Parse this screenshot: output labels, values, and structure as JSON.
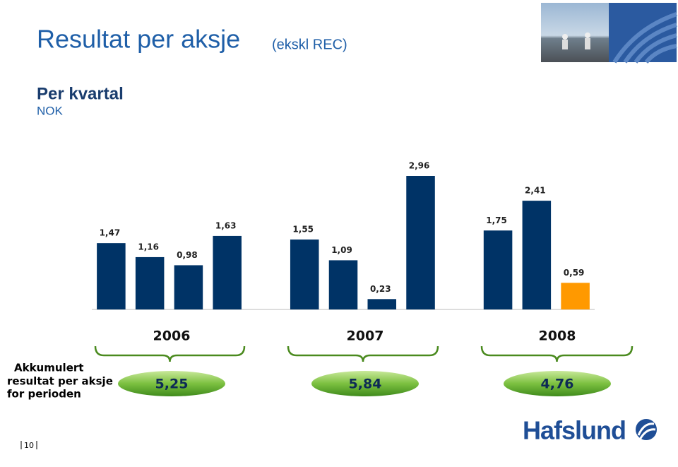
{
  "title": "Resultat per aksje",
  "title_note": "(ekskl REC)",
  "chart_data": {
    "type": "bar",
    "subtitle": "Per kvartal",
    "unit": "NOK",
    "categories": [
      null,
      null,
      null,
      null,
      null,
      null,
      null,
      null,
      null,
      null,
      null,
      null,
      null
    ],
    "values": [
      1.47,
      1.16,
      0.98,
      1.63,
      null,
      1.55,
      1.09,
      0.23,
      2.96,
      null,
      1.75,
      2.41,
      0.59
    ],
    "value_labels": [
      "1,47",
      "1,16",
      "0,98",
      "1,63",
      null,
      "1,55",
      "1,09",
      "0,23",
      "2,96",
      null,
      "1,75",
      "2,41",
      "0,59"
    ],
    "colors": [
      "#003366",
      "#003366",
      "#003366",
      "#003366",
      null,
      "#003366",
      "#003366",
      "#003366",
      "#003366",
      null,
      "#003366",
      "#003366",
      "#ff9900"
    ]
  },
  "groups": [
    {
      "year": "2006",
      "accumulated": "5,25"
    },
    {
      "year": "2007",
      "accumulated": "5,84"
    },
    {
      "year": "2008",
      "accumulated": "4,76"
    }
  ],
  "accumulated_label": [
    "Akkumulert",
    "resultat per aksje",
    "for perioden"
  ],
  "page_number": "10",
  "logo": "Hafslund"
}
